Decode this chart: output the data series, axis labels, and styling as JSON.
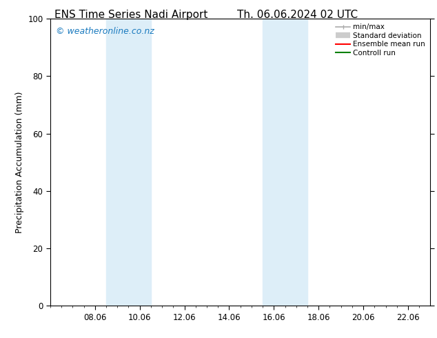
{
  "title_left": "ENS Time Series Nadi Airport",
  "title_right": "Th. 06.06.2024 02 UTC",
  "ylabel": "Precipitation Accumulation (mm)",
  "watermark": "© weatheronline.co.nz",
  "watermark_color": "#1a7abf",
  "ylim": [
    0,
    100
  ],
  "yticks": [
    0,
    20,
    40,
    60,
    80,
    100
  ],
  "xtick_labels": [
    "08.06",
    "10.06",
    "12.06",
    "14.06",
    "16.06",
    "18.06",
    "20.06",
    "22.06"
  ],
  "xtick_positions": [
    4,
    8,
    12,
    16,
    20,
    24,
    28,
    32
  ],
  "x_minor_positions": [
    0,
    1,
    2,
    3,
    4,
    5,
    6,
    7,
    8,
    9,
    10,
    11,
    12,
    13,
    14,
    15,
    16,
    17,
    18,
    19,
    20,
    21,
    22,
    23,
    24,
    25,
    26,
    27,
    28,
    29,
    30,
    31,
    32,
    33
  ],
  "xmin": 0,
  "xmax": 34,
  "bg_color": "#ffffff",
  "plot_bg_color": "#ffffff",
  "shaded_regions": [
    {
      "xstart": 5.0,
      "xend": 9.0,
      "color": "#ddeef8"
    },
    {
      "xstart": 19.0,
      "xend": 23.0,
      "color": "#ddeef8"
    }
  ],
  "legend_items": [
    {
      "label": "min/max",
      "color": "#aaaaaa",
      "lw": 1.2,
      "style": "line_with_caps"
    },
    {
      "label": "Standard deviation",
      "color": "#cccccc",
      "lw": 6,
      "style": "thick"
    },
    {
      "label": "Ensemble mean run",
      "color": "#ff0000",
      "lw": 1.5,
      "style": "line"
    },
    {
      "label": "Controll run",
      "color": "#008000",
      "lw": 1.5,
      "style": "line"
    }
  ],
  "title_fontsize": 11,
  "axis_fontsize": 9,
  "tick_fontsize": 8.5,
  "watermark_fontsize": 9,
  "legend_fontsize": 7.5
}
